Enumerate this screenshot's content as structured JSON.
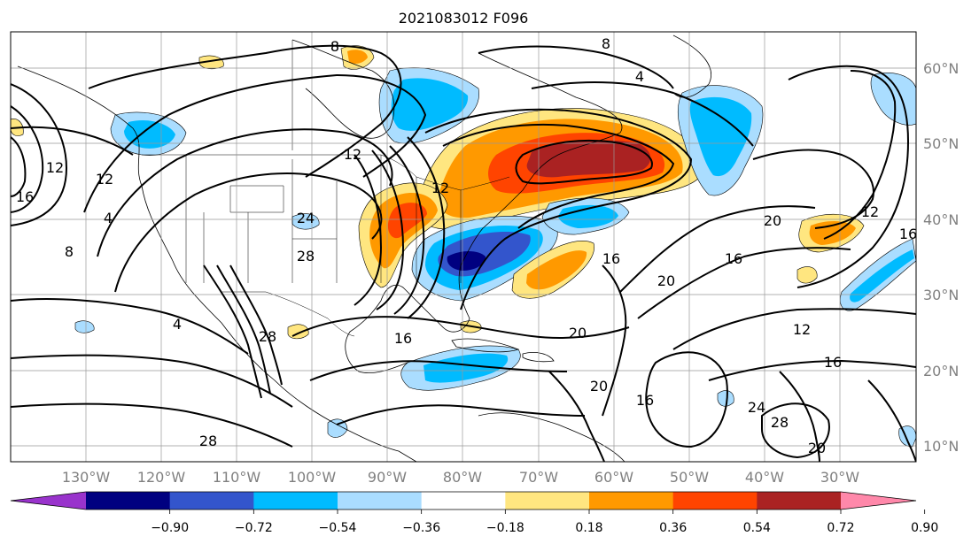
{
  "title": "2021083012 F096",
  "longitude_labels": [
    "130°W",
    "120°W",
    "110°W",
    "100°W",
    "90°W",
    "80°W",
    "70°W",
    "60°W",
    "50°W",
    "40°W",
    "30°W"
  ],
  "latitude_labels": [
    "60°N",
    "50°N",
    "40°N",
    "30°N",
    "20°N",
    "10°N"
  ],
  "colorbar": {
    "colors": [
      "#9933cc",
      "#000080",
      "#3355cc",
      "#00bbff",
      "#aaddff",
      "#ffffff",
      "#ffe680",
      "#ff9900",
      "#ff4400",
      "#aa2222",
      "#ff88aa"
    ],
    "ticks": [
      "−0.90",
      "−0.72",
      "−0.54",
      "−0.36",
      "−0.18",
      "0.18",
      "0.36",
      "0.54",
      "0.72",
      "0.90"
    ]
  },
  "contour_labels": [
    "8",
    "4",
    "16",
    "12",
    "12",
    "4",
    "8",
    "12",
    "24",
    "28",
    "4",
    "28",
    "16",
    "12",
    "16",
    "20",
    "20",
    "12",
    "16",
    "16",
    "20",
    "16",
    "20",
    "28",
    "28",
    "20",
    "24",
    "12",
    "16",
    "8"
  ]
}
